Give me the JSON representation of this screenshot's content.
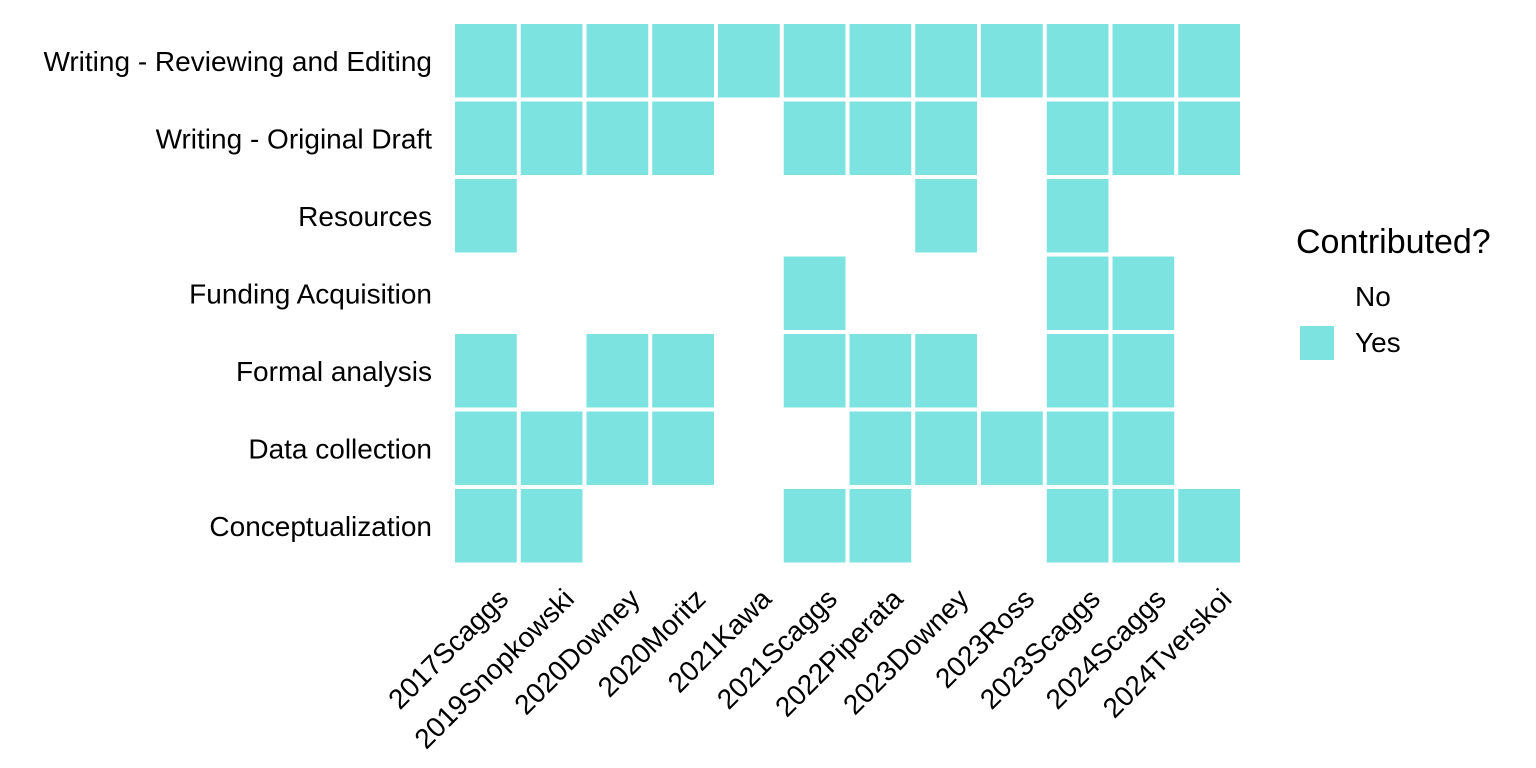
{
  "chart_data": {
    "type": "heatmap",
    "x": [
      "2017Scaggs",
      "2019Snopkowski",
      "2020Downey",
      "2020Moritz",
      "2021Kawa",
      "2021Scaggs",
      "2022Piperata",
      "2023Downey",
      "2023Ross",
      "2023Scaggs",
      "2024Scaggs",
      "2024Tverskoi"
    ],
    "y": [
      "Writing - Reviewing and Editing",
      "Writing - Original Draft",
      "Resources",
      "Funding Acquisition",
      "Formal analysis",
      "Data collection",
      "Conceptualization"
    ],
    "values": [
      [
        "Yes",
        "Yes",
        "Yes",
        "Yes",
        "Yes",
        "Yes",
        "Yes",
        "Yes",
        "Yes",
        "Yes",
        "Yes",
        "Yes"
      ],
      [
        "Yes",
        "Yes",
        "Yes",
        "Yes",
        "No",
        "Yes",
        "Yes",
        "Yes",
        "No",
        "Yes",
        "Yes",
        "Yes"
      ],
      [
        "Yes",
        "No",
        "No",
        "No",
        "No",
        "No",
        "No",
        "Yes",
        "No",
        "Yes",
        "No",
        "No"
      ],
      [
        "No",
        "No",
        "No",
        "No",
        "No",
        "Yes",
        "No",
        "No",
        "No",
        "Yes",
        "Yes",
        "No"
      ],
      [
        "Yes",
        "No",
        "Yes",
        "Yes",
        "No",
        "Yes",
        "Yes",
        "Yes",
        "No",
        "Yes",
        "Yes",
        "No"
      ],
      [
        "Yes",
        "Yes",
        "Yes",
        "Yes",
        "No",
        "No",
        "Yes",
        "Yes",
        "Yes",
        "Yes",
        "Yes",
        "No"
      ],
      [
        "Yes",
        "Yes",
        "No",
        "No",
        "No",
        "Yes",
        "Yes",
        "No",
        "No",
        "Yes",
        "Yes",
        "Yes"
      ]
    ],
    "legend": {
      "title": "Contributed?",
      "entries": [
        {
          "label": "No",
          "color": "#ffffff"
        },
        {
          "label": "Yes",
          "color": "#7ce3e1"
        }
      ],
      "position": "right"
    },
    "xlabel": "",
    "ylabel": "",
    "grid": false
  }
}
